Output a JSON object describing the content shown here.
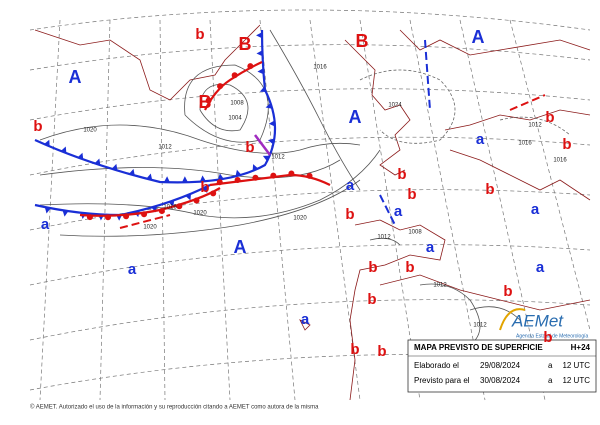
{
  "centers": [
    "A",
    "A",
    "A",
    "A",
    "a",
    "a",
    "a",
    "a",
    "a",
    "a",
    "a",
    "a",
    "a",
    "B",
    "B",
    "B",
    "b",
    "b",
    "b",
    "b",
    "b",
    "b",
    "b",
    "b",
    "b",
    "b",
    "b",
    "b",
    "b",
    "b",
    "b",
    "b",
    "b"
  ],
  "isobar_labels": [
    "1016",
    "1020",
    "1012",
    "1016",
    "1020",
    "1020",
    "1008",
    "1004",
    "1012",
    "1024",
    "1012",
    "1016",
    "1012",
    "1012",
    "1012",
    "1008",
    "1020",
    "1016"
  ],
  "info_box": {
    "title": "MAPA PREVISTO DE SUPERFICIE",
    "lead": "H+24",
    "rows": [
      [
        "Elaborado el",
        "29/08/2024",
        "a",
        "12 UTC"
      ],
      [
        "Previsto para el",
        "30/08/2024",
        "a",
        "12 UTC"
      ]
    ]
  },
  "logo": {
    "name": "AEMet",
    "subtitle": "Agencia Estatal de Meteorología"
  },
  "copyright": "© AEMET. Autorizado el uso de la información y su reproducción citando a AEMET como autora de la misma"
}
